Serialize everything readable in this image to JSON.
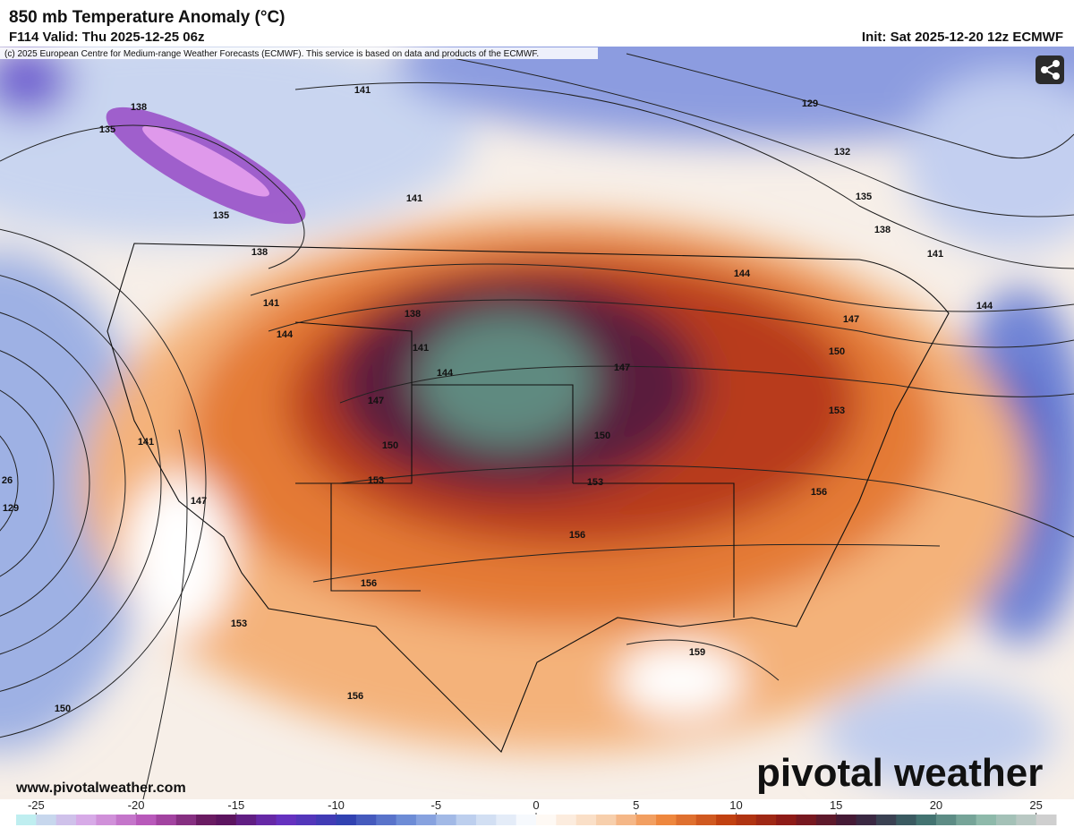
{
  "header": {
    "title": "850 mb Temperature Anomaly (°C)",
    "valid": "F114 Valid: Thu 2025-12-25 06z",
    "init": "Init: Sat 2025-12-20 12z ECMWF"
  },
  "copyright": "(c) 2025 European Centre for Medium-range Weather Forecasts (ECMWF). This service is based on data and products of the ECMWF.",
  "contour_labels": [
    141,
    138,
    135,
    135,
    138,
    141,
    144,
    141,
    141,
    138,
    135,
    132,
    129,
    144,
    144,
    147,
    150,
    153,
    156,
    159,
    147,
    150,
    153,
    156,
    156,
    153,
    150,
    147,
    144,
    141,
    138,
    141,
    147,
    26,
    129,
    153,
    150,
    156
  ],
  "website": "www.pivotalweather.com",
  "logo": "pivotal weather",
  "colorbar": {
    "lim": [
      -26,
      26
    ],
    "ticks": [
      -25,
      -20,
      -15,
      -10,
      -5,
      0,
      5,
      10,
      15,
      20,
      25
    ],
    "colors": [
      "#bfeef0",
      "#d9a6e6",
      "#b44fb4",
      "#5a1050",
      "#6a30c0",
      "#3040b0",
      "#6f8fd8",
      "#c6d6f0",
      "#ffffff",
      "#f8d6b8",
      "#f08a40",
      "#c04010",
      "#8a1818",
      "#3a1a3a",
      "#3a6a6a",
      "#8ab8a8",
      "#cfcfcf"
    ]
  }
}
